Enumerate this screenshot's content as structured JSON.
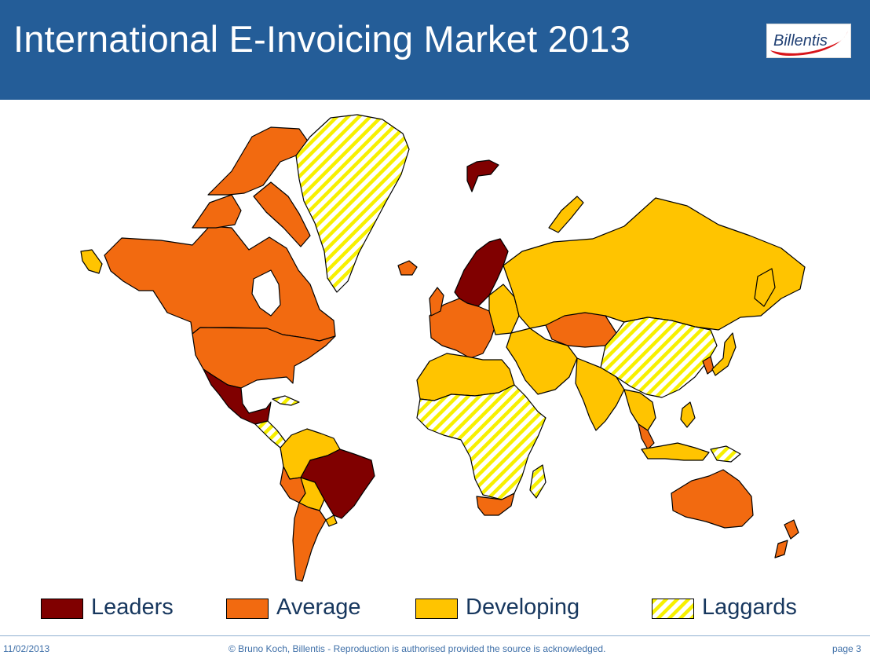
{
  "header": {
    "title": "International E-Invoicing Market 2013",
    "background_color": "#245d98",
    "logo": {
      "text": "Billentis",
      "text_color": "#1f3f73",
      "swoosh_color": "#d8141a"
    }
  },
  "legend": [
    {
      "label": "Leaders",
      "color": "#800000",
      "pattern": "solid"
    },
    {
      "label": "Average",
      "color": "#f26a10",
      "pattern": "solid"
    },
    {
      "label": "Developing",
      "color": "#ffc400",
      "pattern": "solid"
    },
    {
      "label": "Laggards",
      "color": "#f7f000",
      "pattern": "diagonal-hatch"
    }
  ],
  "map": {
    "type": "choropleth world map",
    "regions": {
      "Leaders": [
        "Mexico",
        "Brazil",
        "Scandinavia",
        "Svalbard"
      ],
      "Average": [
        "Canada",
        "USA",
        "Western Europe",
        "Kazakhstan",
        "Iceland",
        "Argentina",
        "Chile",
        "Peru",
        "South Africa",
        "Australia",
        "New Zealand",
        "Thailand",
        "Malaysia",
        "South Korea"
      ],
      "Developing": [
        "Alaska",
        "Russia",
        "Eastern Europe",
        "North Africa",
        "Middle East",
        "India",
        "Indonesia",
        "Colombia",
        "Venezuela",
        "Bolivia",
        "Paraguay",
        "Uruguay",
        "Japan",
        "Philippines"
      ],
      "Laggards": [
        "Greenland",
        "Sub-Saharan Africa",
        "China",
        "Mongolia",
        "Central Asia",
        "Central America",
        "Papua New Guinea"
      ]
    }
  },
  "footer": {
    "date": "11/02/2013",
    "copyright": "© Bruno Koch, Billentis  -  Reproduction is authorised provided the source is acknowledged.",
    "page": "page 3"
  }
}
